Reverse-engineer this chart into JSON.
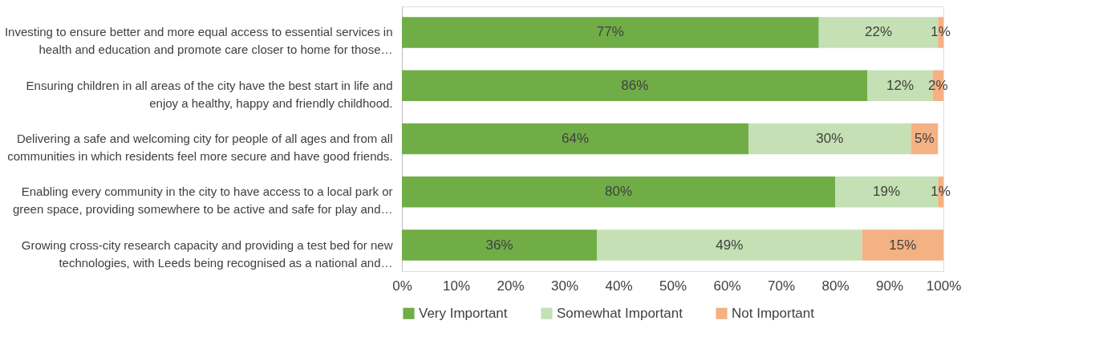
{
  "chart_data": {
    "type": "bar",
    "orientation": "horizontal",
    "stacked": true,
    "categories": [
      "Investing to ensure better and more equal access to essential services in health and education and promote care closer to home for those…",
      "Ensuring children in all areas of the city have the best start in life and enjoy a healthy, happy and friendly childhood.",
      "Delivering a safe and welcoming city for people of all ages and from all communities in which residents feel more secure and have good friends.",
      "Enabling every community in the city to have access to a local park or green space, providing somewhere to be active and safe for play and…",
      "Growing cross-city research capacity and providing a test bed for new technologies, with Leeds being recognised as a national and…"
    ],
    "series": [
      {
        "name": "Very Important",
        "color": "#70ad47",
        "values": [
          77,
          86,
          64,
          80,
          36
        ],
        "value_labels": [
          "77%",
          "86%",
          "64%",
          "80%",
          "36%"
        ]
      },
      {
        "name": "Somewhat Important",
        "color": "#c5e0b4",
        "values": [
          22,
          12,
          30,
          19,
          49
        ],
        "value_labels": [
          "22%",
          "12%",
          "30%",
          "19%",
          "49%"
        ]
      },
      {
        "name": "Not Important",
        "color": "#f4b183",
        "values": [
          1,
          2,
          5,
          1,
          15
        ],
        "value_labels": [
          "1%",
          "2%",
          "5%",
          "1%",
          "15%"
        ]
      }
    ],
    "xlim": [
      0,
      100
    ],
    "xticks": [
      {
        "value": 0,
        "label": "0%"
      },
      {
        "value": 10,
        "label": "10%"
      },
      {
        "value": 20,
        "label": "20%"
      },
      {
        "value": 30,
        "label": "30%"
      },
      {
        "value": 40,
        "label": "40%"
      },
      {
        "value": 50,
        "label": "50%"
      },
      {
        "value": 60,
        "label": "60%"
      },
      {
        "value": 70,
        "label": "70%"
      },
      {
        "value": 80,
        "label": "80%"
      },
      {
        "value": 90,
        "label": "90%"
      },
      {
        "value": 100,
        "label": "100%"
      }
    ],
    "grid": false,
    "legend": "bottom"
  }
}
